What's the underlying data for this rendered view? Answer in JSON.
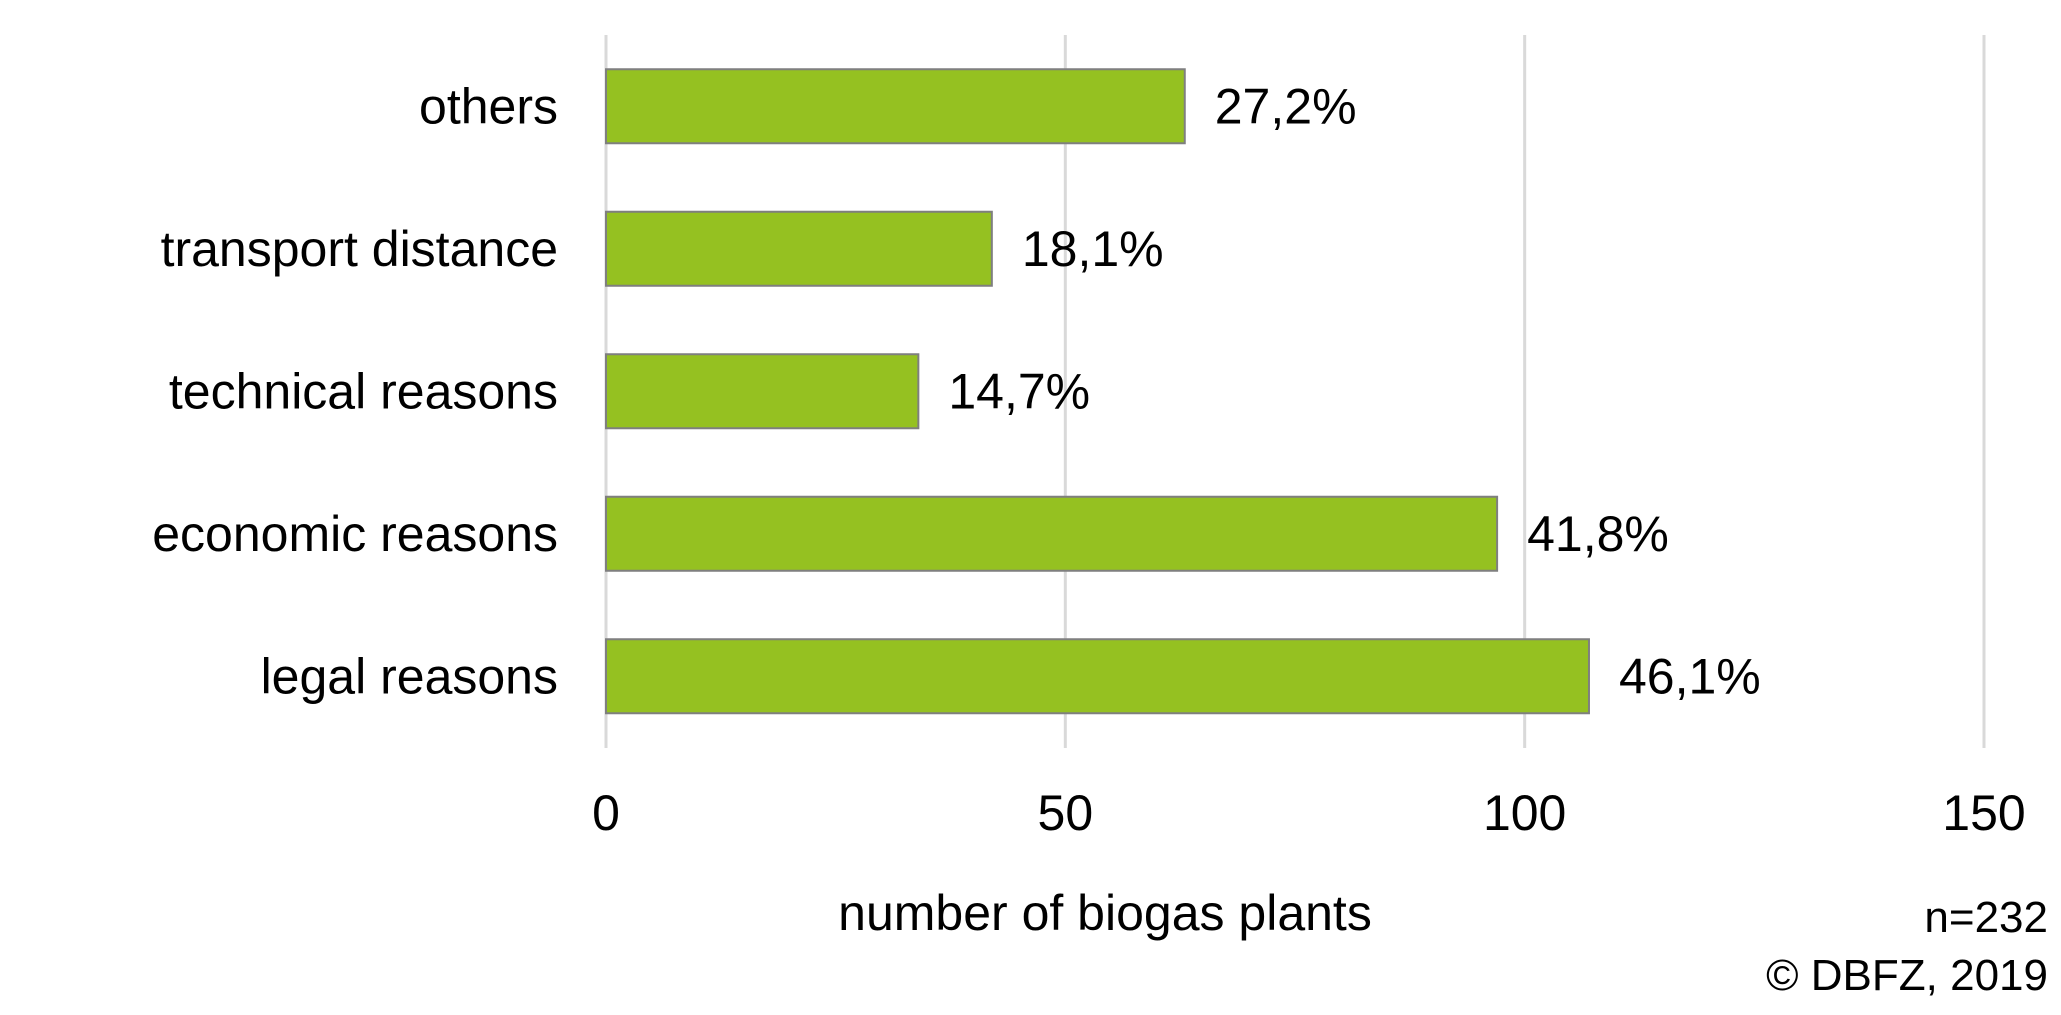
{
  "chart_data": {
    "type": "bar",
    "orientation": "horizontal",
    "categories": [
      "others",
      "transport distance",
      "technical reasons",
      "economic reasons",
      "legal reasons"
    ],
    "values": [
      63,
      42,
      34,
      97,
      107
    ],
    "data_labels": [
      "27,2%",
      "18,1%",
      "14,7%",
      "41,8%",
      "46,1%"
    ],
    "xlabel": "number of biogas plants",
    "ylabel": "",
    "xlim": [
      0,
      150
    ],
    "x_ticks": [
      0,
      50,
      100,
      150
    ],
    "x_tick_labels": [
      "0",
      "50",
      "100",
      "150"
    ],
    "grid": "vertical",
    "legend": "none",
    "bar_color": "#95c121",
    "bar_edge_color": "#7f7f7f",
    "grid_color": "#d9d9d9"
  },
  "notes": {
    "sample_size": "n=232",
    "copyright": "© DBFZ, 2019"
  }
}
